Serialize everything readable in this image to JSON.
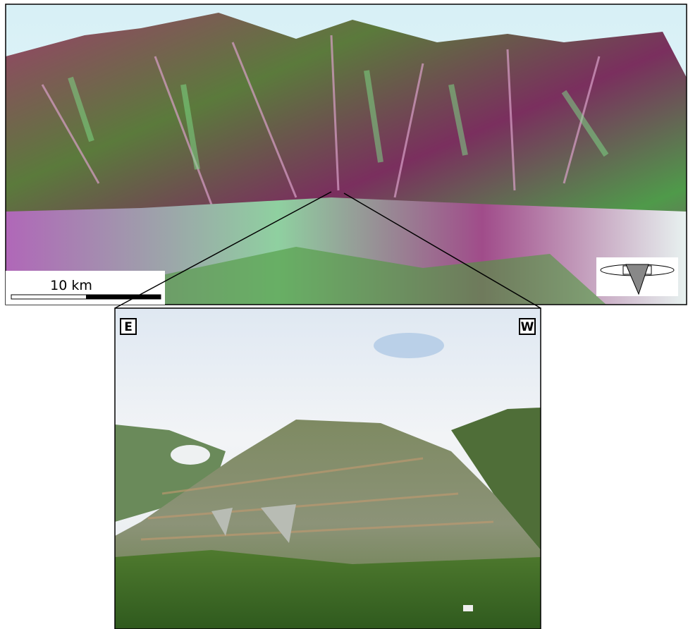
{
  "scale_bar": {
    "label": "10 km"
  },
  "photo": {
    "left_label": "E",
    "right_label": "W"
  }
}
